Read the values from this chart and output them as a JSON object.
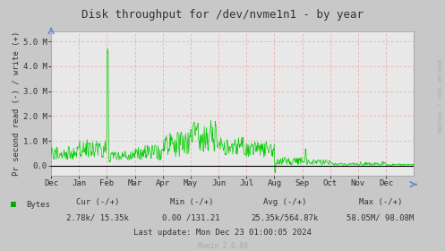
{
  "title": "Disk throughput for /dev/nvme1n1 - by year",
  "ylabel": "Pr second read (-) / write (+)",
  "background_color": "#c8c8c8",
  "plot_bg_color": "#e8e8e8",
  "grid_color": "#ff8888",
  "line_color": "#00cc00",
  "zero_line_color": "#000000",
  "ylim": [
    -400000,
    5400000
  ],
  "yticks": [
    0,
    1000000,
    2000000,
    3000000,
    4000000,
    5000000
  ],
  "ytick_labels": [
    "0.0",
    "1.0 M",
    "2.0 M",
    "3.0 M",
    "4.0 M",
    "5.0 M"
  ],
  "x_months": [
    "Dec",
    "Jan",
    "Feb",
    "Mar",
    "Apr",
    "May",
    "Jun",
    "Jul",
    "Aug",
    "Sep",
    "Oct",
    "Nov",
    "Dec"
  ],
  "rrdtool_text": "RRDTOOL / TOBI OETIKER",
  "legend_label": "Bytes",
  "legend_color": "#00aa00",
  "cur_label": "Cur (-/+)",
  "cur_value": "2.78k/ 15.35k",
  "min_label": "Min (-/+)",
  "min_value": "0.00 /131.21",
  "avg_label": "Avg (-/+)",
  "avg_value": "25.35k/564.87k",
  "max_label": "Max (-/+)",
  "max_value": "58.05M/ 98.08M",
  "last_update": "Last update: Mon Dec 23 01:00:05 2024",
  "munin_version": "Munin 2.0.69",
  "title_fontsize": 9,
  "axis_label_fontsize": 6.5,
  "tick_fontsize": 6.5,
  "info_fontsize": 6.5,
  "munin_fontsize": 5.5
}
